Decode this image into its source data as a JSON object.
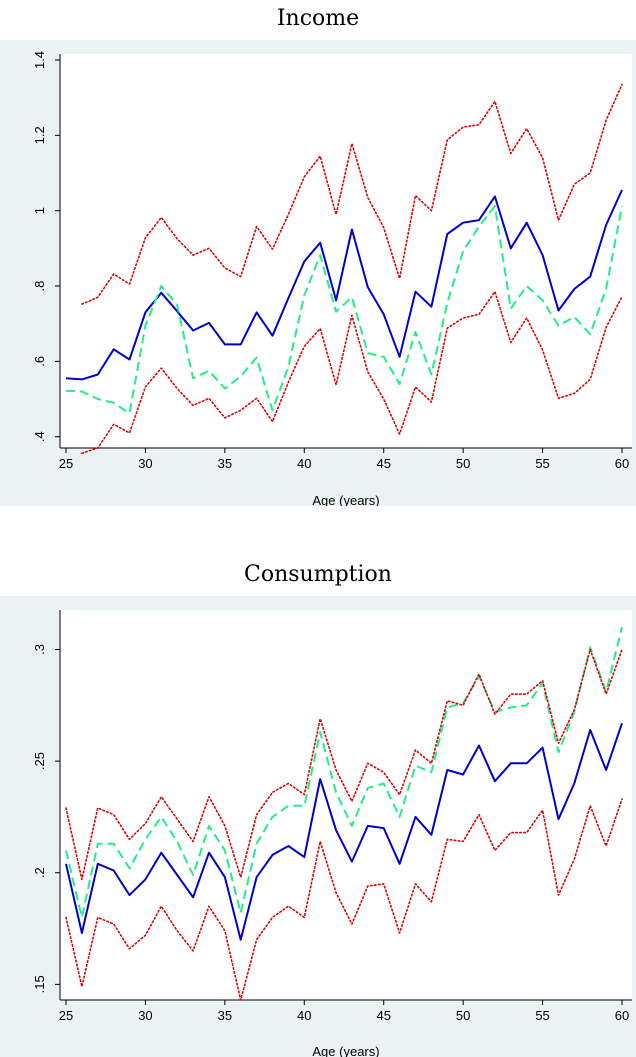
{
  "chart_data": [
    {
      "type": "line",
      "title": "Income",
      "xlabel": "Age (years)",
      "ylabel": "",
      "xlim": [
        25,
        60
      ],
      "ylim": [
        0.37,
        1.4
      ],
      "xticks": [
        25,
        30,
        35,
        40,
        45,
        50,
        55,
        60
      ],
      "xtick_labels": [
        "25",
        "30",
        "35",
        "40",
        "45",
        "50",
        "55",
        "60"
      ],
      "yticks": [
        0.4,
        0.6,
        0.8,
        1.0,
        1.2,
        1.4
      ],
      "ytick_labels": [
        ".4",
        ".6",
        ".8",
        "1",
        "1.2",
        "1.4"
      ],
      "grid": false,
      "legend": "none",
      "series": [
        {
          "style": "solid",
          "color": "#0000cc",
          "x": [
            25,
            26,
            27,
            28,
            29,
            30,
            31,
            32,
            33,
            34,
            35,
            36,
            37,
            38,
            39,
            40,
            41,
            42,
            43,
            44,
            45,
            46,
            47,
            48,
            49,
            50,
            51,
            52,
            53,
            54,
            55,
            56,
            57,
            58,
            59,
            60
          ],
          "y": [
            0.555,
            0.552,
            0.565,
            0.632,
            0.605,
            0.73,
            0.782,
            0.733,
            0.682,
            0.702,
            0.645,
            0.645,
            0.73,
            0.668,
            0.768,
            0.865,
            0.915,
            0.762,
            0.95,
            0.797,
            0.725,
            0.612,
            0.785,
            0.745,
            0.938,
            0.968,
            0.975,
            1.038,
            0.9,
            0.968,
            0.882,
            0.735,
            0.792,
            0.825,
            0.962,
            1.055
          ]
        },
        {
          "style": "dashed",
          "color": "#22ee88",
          "x": [
            25,
            26,
            27,
            28,
            29,
            30,
            31,
            32,
            33,
            34,
            35,
            36,
            37,
            38,
            39,
            40,
            41,
            42,
            43,
            44,
            45,
            46,
            47,
            48,
            49,
            50,
            51,
            52,
            53,
            54,
            55,
            56,
            57,
            58,
            59,
            60
          ],
          "y": [
            0.522,
            0.52,
            0.5,
            0.49,
            0.462,
            0.695,
            0.8,
            0.75,
            0.555,
            0.575,
            0.528,
            0.56,
            0.61,
            0.47,
            0.585,
            0.775,
            0.882,
            0.732,
            0.77,
            0.622,
            0.612,
            0.54,
            0.678,
            0.565,
            0.755,
            0.892,
            0.958,
            1.012,
            0.74,
            0.8,
            0.762,
            0.695,
            0.718,
            0.672,
            0.792,
            1.012
          ]
        },
        {
          "style": "dotted",
          "color": "#dd0000",
          "x": [
            26,
            27,
            28,
            29,
            30,
            31,
            32,
            33,
            34,
            35,
            36,
            37,
            38,
            39,
            40,
            41,
            42,
            43,
            44,
            45,
            46,
            47,
            48,
            49,
            50,
            51,
            52,
            53,
            54,
            55,
            56,
            57,
            58,
            59,
            60
          ],
          "y": [
            0.752,
            0.77,
            0.832,
            0.805,
            0.928,
            0.982,
            0.925,
            0.882,
            0.9,
            0.848,
            0.825,
            0.958,
            0.898,
            0.99,
            1.09,
            1.145,
            0.99,
            1.178,
            1.035,
            0.955,
            0.82,
            1.04,
            1.0,
            1.188,
            1.222,
            1.228,
            1.29,
            1.152,
            1.218,
            1.14,
            0.975,
            1.07,
            1.1,
            1.24,
            1.335
          ]
        },
        {
          "style": "dotted",
          "color": "#dd0000",
          "x": [
            26,
            27,
            28,
            29,
            30,
            31,
            32,
            33,
            34,
            35,
            36,
            37,
            38,
            39,
            40,
            41,
            42,
            43,
            44,
            45,
            46,
            47,
            48,
            49,
            50,
            51,
            52,
            53,
            54,
            55,
            56,
            57,
            58,
            59,
            60
          ],
          "y": [
            0.356,
            0.37,
            0.433,
            0.41,
            0.532,
            0.582,
            0.528,
            0.483,
            0.502,
            0.45,
            0.47,
            0.502,
            0.44,
            0.545,
            0.64,
            0.687,
            0.538,
            0.722,
            0.572,
            0.5,
            0.407,
            0.532,
            0.492,
            0.688,
            0.715,
            0.725,
            0.785,
            0.65,
            0.715,
            0.63,
            0.502,
            0.515,
            0.552,
            0.69,
            0.772
          ]
        }
      ]
    },
    {
      "type": "line",
      "title": "Consumption",
      "xlabel": "Age (years)",
      "ylabel": "",
      "xlim": [
        25,
        60
      ],
      "ylim": [
        0.143,
        0.315
      ],
      "xticks": [
        25,
        30,
        35,
        40,
        45,
        50,
        55,
        60
      ],
      "xtick_labels": [
        "25",
        "30",
        "35",
        "40",
        "45",
        "50",
        "55",
        "60"
      ],
      "yticks": [
        0.15,
        0.2,
        0.25,
        0.3
      ],
      "ytick_labels": [
        ".15",
        ".2",
        ".25",
        ".3"
      ],
      "grid": false,
      "legend": "none",
      "series": [
        {
          "style": "solid",
          "color": "#0000cc",
          "x": [
            25,
            26,
            27,
            28,
            29,
            30,
            31,
            32,
            33,
            34,
            35,
            36,
            37,
            38,
            39,
            40,
            41,
            42,
            43,
            44,
            45,
            46,
            47,
            48,
            49,
            50,
            51,
            52,
            53,
            54,
            55,
            56,
            57,
            58,
            59,
            60
          ],
          "y": [
            0.204,
            0.173,
            0.204,
            0.201,
            0.19,
            0.197,
            0.209,
            0.199,
            0.189,
            0.209,
            0.198,
            0.17,
            0.198,
            0.208,
            0.212,
            0.207,
            0.242,
            0.219,
            0.205,
            0.221,
            0.22,
            0.204,
            0.225,
            0.217,
            0.246,
            0.244,
            0.257,
            0.241,
            0.249,
            0.249,
            0.256,
            0.224,
            0.24,
            0.264,
            0.246,
            0.267
          ]
        },
        {
          "style": "dashed",
          "color": "#22ee88",
          "x": [
            25,
            26,
            27,
            28,
            29,
            30,
            31,
            32,
            33,
            34,
            35,
            36,
            37,
            38,
            39,
            40,
            41,
            42,
            43,
            44,
            45,
            46,
            47,
            48,
            49,
            50,
            51,
            52,
            53,
            54,
            55,
            56,
            57,
            58,
            59,
            60
          ],
          "y": [
            0.21,
            0.18,
            0.213,
            0.213,
            0.202,
            0.215,
            0.225,
            0.214,
            0.199,
            0.221,
            0.21,
            0.182,
            0.213,
            0.225,
            0.23,
            0.23,
            0.263,
            0.236,
            0.221,
            0.238,
            0.24,
            0.225,
            0.248,
            0.245,
            0.274,
            0.276,
            0.288,
            0.272,
            0.274,
            0.275,
            0.285,
            0.254,
            0.272,
            0.301,
            0.281,
            0.31
          ]
        },
        {
          "style": "dotted",
          "color": "#dd0000",
          "x": [
            25,
            26,
            27,
            28,
            29,
            30,
            31,
            32,
            33,
            34,
            35,
            36,
            37,
            38,
            39,
            40,
            41,
            42,
            43,
            44,
            45,
            46,
            47,
            48,
            49,
            50,
            51,
            52,
            53,
            54,
            55,
            56,
            57,
            58,
            59,
            60
          ],
          "y": [
            0.229,
            0.197,
            0.229,
            0.226,
            0.215,
            0.222,
            0.234,
            0.224,
            0.214,
            0.234,
            0.221,
            0.198,
            0.226,
            0.236,
            0.24,
            0.235,
            0.269,
            0.246,
            0.232,
            0.249,
            0.245,
            0.235,
            0.255,
            0.249,
            0.277,
            0.275,
            0.289,
            0.271,
            0.28,
            0.28,
            0.286,
            0.258,
            0.273,
            0.3,
            0.28,
            0.3
          ]
        },
        {
          "style": "dotted",
          "color": "#dd0000",
          "x": [
            25,
            26,
            27,
            28,
            29,
            30,
            31,
            32,
            33,
            34,
            35,
            36,
            37,
            38,
            39,
            40,
            41,
            42,
            43,
            44,
            45,
            46,
            47,
            48,
            49,
            50,
            51,
            52,
            53,
            54,
            55,
            56,
            57,
            58,
            59,
            60
          ],
          "y": [
            0.18,
            0.149,
            0.18,
            0.177,
            0.166,
            0.172,
            0.185,
            0.174,
            0.165,
            0.185,
            0.174,
            0.143,
            0.17,
            0.18,
            0.185,
            0.18,
            0.214,
            0.191,
            0.177,
            0.194,
            0.195,
            0.173,
            0.195,
            0.187,
            0.215,
            0.214,
            0.226,
            0.21,
            0.218,
            0.218,
            0.228,
            0.19,
            0.206,
            0.23,
            0.212,
            0.233
          ]
        }
      ]
    }
  ]
}
